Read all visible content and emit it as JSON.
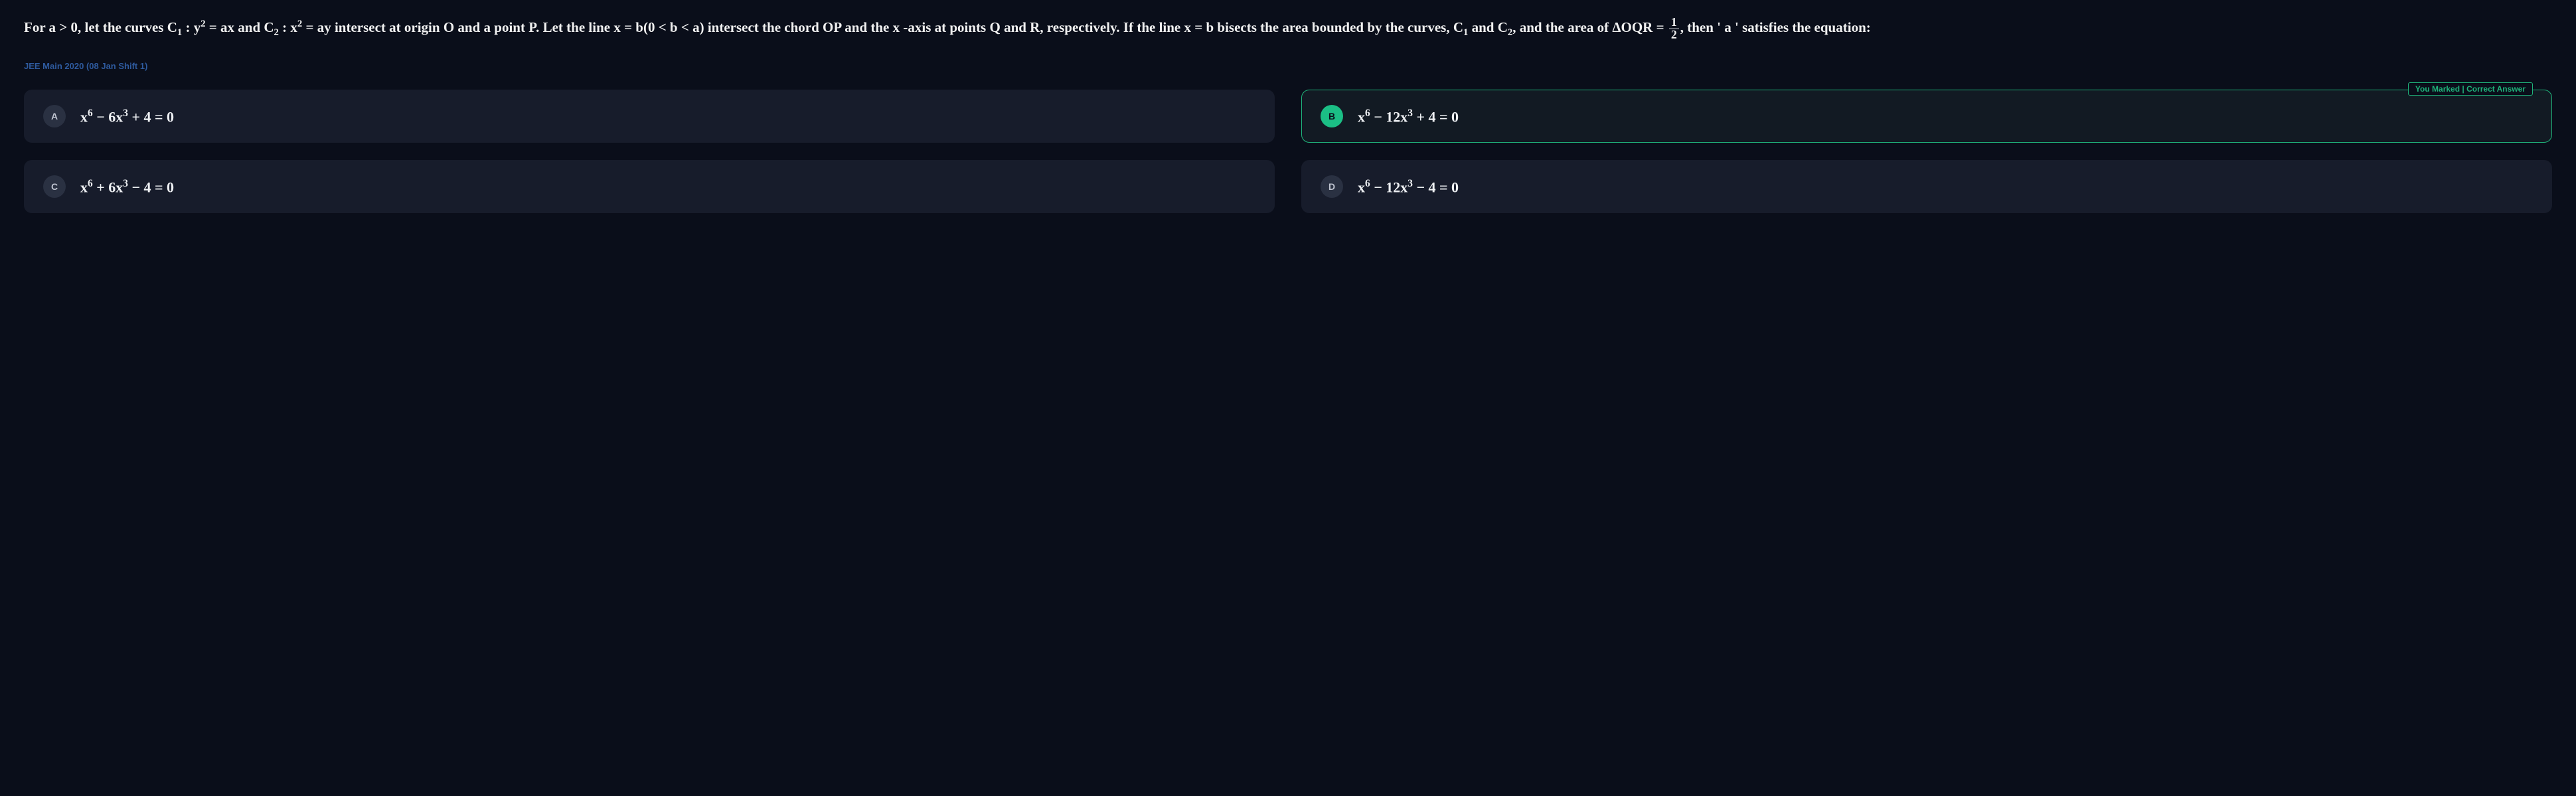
{
  "question": {
    "html": "For a &gt; 0, let the curves C<sub>1</sub> : y<sup>2</sup> = ax and C<sub>2</sub> : x<sup>2</sup> = ay intersect at origin O and a point P. Let the line x = b(0 &lt; b &lt; a) intersect the chord OP and the x -axis at points Q and R, respectively. If the line x = b bisects the area bounded by the curves, C<sub>1</sub> and C<sub>2</sub>, and the area of &#916;OQR = <span class=\"frac\"><span class=\"num\">1</span><span class=\"den\">2</span></span>, then ' a ' satisfies the equation:"
  },
  "source_tag": "JEE Main 2020 (08 Jan Shift 1)",
  "marker_label": "You Marked | Correct Answer",
  "options": [
    {
      "letter": "A",
      "html": "x<sup>6</sup> &minus; 6x<sup>3</sup> + 4 = 0",
      "correct": false
    },
    {
      "letter": "B",
      "html": "x<sup>6</sup> &minus; 12x<sup>3</sup> + 4 = 0",
      "correct": true
    },
    {
      "letter": "C",
      "html": "x<sup>6</sup> + 6x<sup>3</sup> &minus; 4 = 0",
      "correct": false
    },
    {
      "letter": "D",
      "html": "x<sup>6</sup> &minus; 12x<sup>3</sup> &minus; 4 = 0",
      "correct": false
    }
  ],
  "colors": {
    "background": "#0a0e1a",
    "card": "#171c2b",
    "text": "#e8eaed",
    "accent_green": "#1bbf85",
    "border_green": "#1fb37a",
    "tag_blue": "#2e5a9e",
    "badge_bg": "#2a3142"
  }
}
